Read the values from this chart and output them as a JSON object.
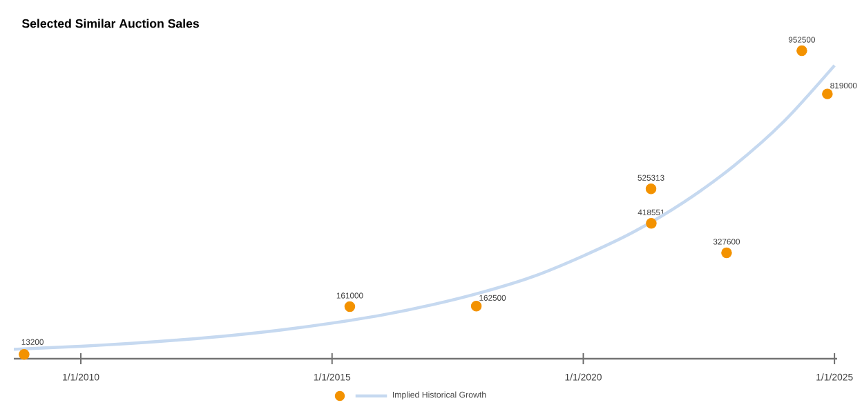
{
  "chart_data": {
    "type": "scatter",
    "title": "Selected Similar Auction Sales",
    "xlim": [
      "2008-09-01",
      "2025-01-20"
    ],
    "xticks": [
      {
        "value": "2010-01-01",
        "label": "1/1/2010"
      },
      {
        "value": "2015-01-01",
        "label": "1/1/2015"
      },
      {
        "value": "2020-01-01",
        "label": "1/1/2020"
      },
      {
        "value": "2025-01-01",
        "label": "1/1/2025"
      }
    ],
    "tick_labels": "x",
    "legend": "bottom",
    "series": [
      {
        "color": "#f39200",
        "marker": "circle",
        "x": [
          "2008-11-15",
          "2015-05-10",
          "2017-11-15",
          "2021-05-08",
          "2021-05-10",
          "2022-11-08",
          "2024-05-08",
          "2024-11-10"
        ],
        "values": [
          13200,
          161000,
          162500,
          525313,
          418551,
          327600,
          952500,
          819000
        ],
        "value_labels": [
          "13200",
          "161000",
          "162500",
          "525313",
          "418551",
          "327600",
          "952500",
          "819000"
        ]
      },
      {
        "type": "line",
        "name": "Implied Historical Growth",
        "color": "#c6d9f0",
        "line_style": "solid",
        "marker": "none",
        "x": [
          "2008-09-01",
          "2010-01-01",
          "2011-01-01",
          "2012-01-01",
          "2013-01-01",
          "2014-01-01",
          "2015-01-01",
          "2016-01-01",
          "2017-01-01",
          "2018-01-01",
          "2019-01-01",
          "2020-01-01",
          "2021-01-01",
          "2022-01-01",
          "2023-01-01",
          "2024-01-01",
          "2025-01-01"
        ],
        "values": [
          29000,
          38500,
          47500,
          58500,
          72000,
          89000,
          110000,
          135000,
          167000,
          206000,
          254000,
          318000,
          392000,
          484000,
          597000,
          735000,
          907000
        ]
      }
    ]
  }
}
